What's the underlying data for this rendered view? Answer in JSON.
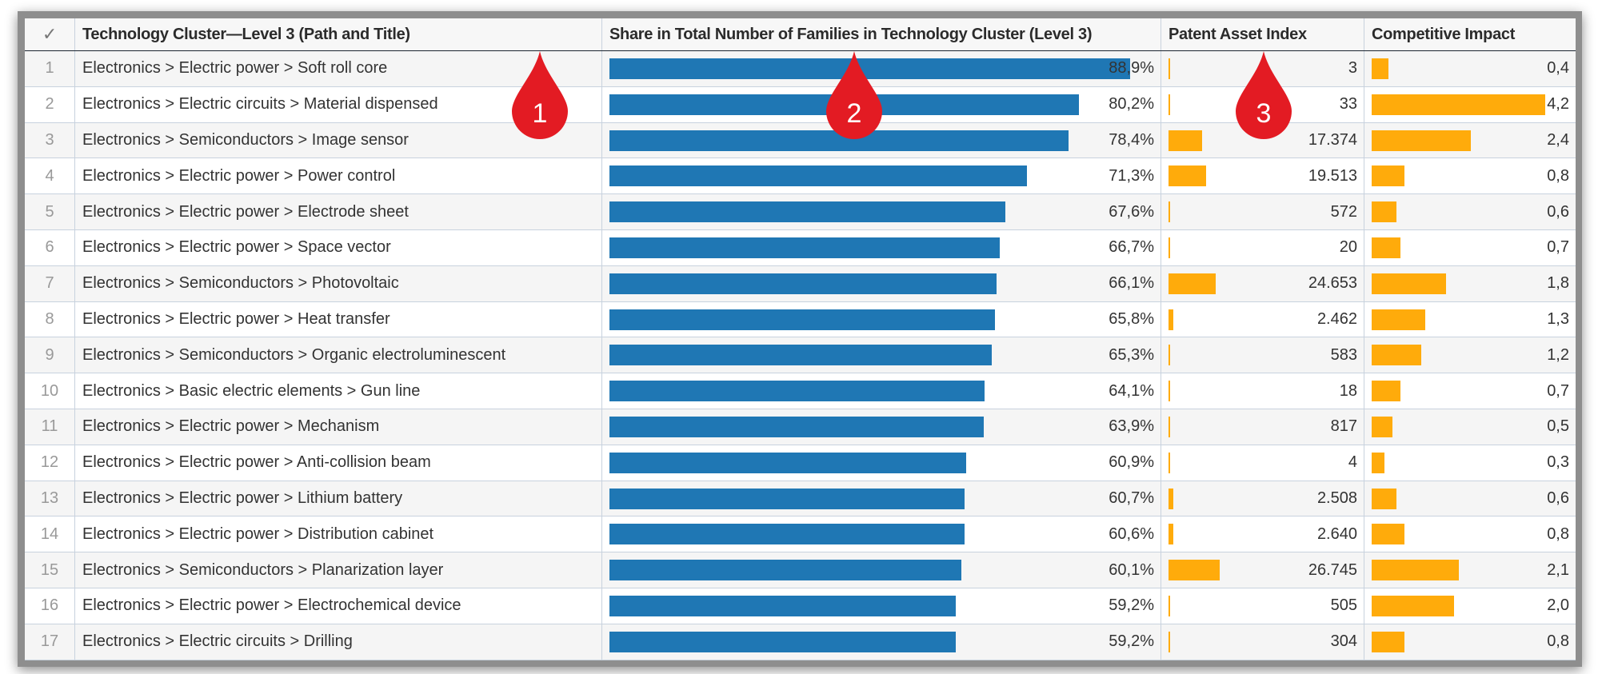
{
  "header": {
    "check_icon": "checkmark-icon",
    "columns": [
      "Technology Cluster—Level 3 (Path and Title)",
      "Share in Total Number of Families in Technology Cluster (Level 3)",
      "Patent Asset Index",
      "Competitive Impact"
    ]
  },
  "colors": {
    "share_bar": "#1f77b4",
    "metric_bar": "#ffab0b",
    "marker": "#e31b23"
  },
  "rows": [
    {
      "n": "1",
      "cluster": "Electronics > Electric power > Soft roll core",
      "share": 88.9,
      "share_label": "88,9%",
      "pai": 3,
      "pai_label": "3",
      "ci": 0.4,
      "ci_label": "0,4"
    },
    {
      "n": "2",
      "cluster": "Electronics > Electric circuits > Material dispensed",
      "share": 80.2,
      "share_label": "80,2%",
      "pai": 33,
      "pai_label": "33",
      "ci": 4.2,
      "ci_label": "4,2"
    },
    {
      "n": "3",
      "cluster": "Electronics > Semiconductors > Image sensor",
      "share": 78.4,
      "share_label": "78,4%",
      "pai": 17374,
      "pai_label": "17.374",
      "ci": 2.4,
      "ci_label": "2,4"
    },
    {
      "n": "4",
      "cluster": "Electronics > Electric power > Power control",
      "share": 71.3,
      "share_label": "71,3%",
      "pai": 19513,
      "pai_label": "19.513",
      "ci": 0.8,
      "ci_label": "0,8"
    },
    {
      "n": "5",
      "cluster": "Electronics > Electric power > Electrode sheet",
      "share": 67.6,
      "share_label": "67,6%",
      "pai": 572,
      "pai_label": "572",
      "ci": 0.6,
      "ci_label": "0,6"
    },
    {
      "n": "6",
      "cluster": "Electronics > Electric power > Space vector",
      "share": 66.7,
      "share_label": "66,7%",
      "pai": 20,
      "pai_label": "20",
      "ci": 0.7,
      "ci_label": "0,7"
    },
    {
      "n": "7",
      "cluster": "Electronics > Semiconductors > Photovoltaic",
      "share": 66.1,
      "share_label": "66,1%",
      "pai": 24653,
      "pai_label": "24.653",
      "ci": 1.8,
      "ci_label": "1,8"
    },
    {
      "n": "8",
      "cluster": "Electronics > Electric power > Heat transfer",
      "share": 65.8,
      "share_label": "65,8%",
      "pai": 2462,
      "pai_label": "2.462",
      "ci": 1.3,
      "ci_label": "1,3"
    },
    {
      "n": "9",
      "cluster": "Electronics > Semiconductors > Organic electroluminescent",
      "share": 65.3,
      "share_label": "65,3%",
      "pai": 583,
      "pai_label": "583",
      "ci": 1.2,
      "ci_label": "1,2"
    },
    {
      "n": "10",
      "cluster": "Electronics > Basic electric elements > Gun line",
      "share": 64.1,
      "share_label": "64,1%",
      "pai": 18,
      "pai_label": "18",
      "ci": 0.7,
      "ci_label": "0,7"
    },
    {
      "n": "11",
      "cluster": "Electronics > Electric power > Mechanism",
      "share": 63.9,
      "share_label": "63,9%",
      "pai": 817,
      "pai_label": "817",
      "ci": 0.5,
      "ci_label": "0,5"
    },
    {
      "n": "12",
      "cluster": "Electronics > Electric power > Anti-collision beam",
      "share": 60.9,
      "share_label": "60,9%",
      "pai": 4,
      "pai_label": "4",
      "ci": 0.3,
      "ci_label": "0,3"
    },
    {
      "n": "13",
      "cluster": "Electronics > Electric power > Lithium battery",
      "share": 60.7,
      "share_label": "60,7%",
      "pai": 2508,
      "pai_label": "2.508",
      "ci": 0.6,
      "ci_label": "0,6"
    },
    {
      "n": "14",
      "cluster": "Electronics > Electric power > Distribution cabinet",
      "share": 60.6,
      "share_label": "60,6%",
      "pai": 2640,
      "pai_label": "2.640",
      "ci": 0.8,
      "ci_label": "0,8"
    },
    {
      "n": "15",
      "cluster": "Electronics > Semiconductors > Planarization layer",
      "share": 60.1,
      "share_label": "60,1%",
      "pai": 26745,
      "pai_label": "26.745",
      "ci": 2.1,
      "ci_label": "2,1"
    },
    {
      "n": "16",
      "cluster": "Electronics > Electric power > Electrochemical device",
      "share": 59.2,
      "share_label": "59,2%",
      "pai": 505,
      "pai_label": "505",
      "ci": 2.0,
      "ci_label": "2,0"
    },
    {
      "n": "17",
      "cluster": "Electronics > Electric circuits > Drilling",
      "share": 59.2,
      "share_label": "59,2%",
      "pai": 304,
      "pai_label": "304",
      "ci": 0.8,
      "ci_label": "0,8"
    }
  ],
  "markers": [
    "1",
    "2",
    "3"
  ]
}
